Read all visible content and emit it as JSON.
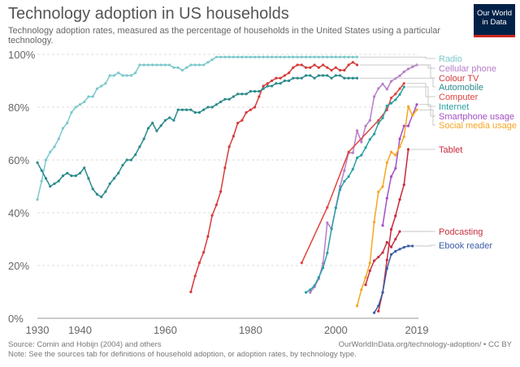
{
  "header": {
    "title": "Technology adoption in US households",
    "subtitle": "Technology adoption rates, measured as the percentage of households in the United States using a particular technology.",
    "logo_text": "Our World in Data"
  },
  "footer": {
    "source": "Source: Comin and Hobijn (2004) and others",
    "url": "OurWorldInData.org/technology-adoption/ • CC BY",
    "note": "Note: See the sources tab for definitions of household adoption, or adoption rates, by technology type."
  },
  "chart_data": {
    "type": "line",
    "title": "Technology adoption in US households",
    "xlabel": "",
    "ylabel": "",
    "xlim": [
      1930,
      2019
    ],
    "ylim": [
      0,
      100
    ],
    "grid": true,
    "legend": "right (labels at line ends)",
    "x_ticks": [
      "1930",
      "1940",
      "1960",
      "1980",
      "2000",
      "2019"
    ],
    "y_ticks": [
      "0%",
      "20%",
      "40%",
      "60%",
      "80%",
      "100%"
    ],
    "series": [
      {
        "name": "Radio",
        "color": "#7cc8cb",
        "start": 1930,
        "values": [
          45,
          52,
          60,
          63,
          65,
          68,
          72,
          74,
          78,
          80,
          81,
          82,
          84,
          84,
          87,
          88,
          89,
          92,
          92,
          93,
          92,
          92,
          92,
          93,
          96,
          96,
          96,
          96,
          96,
          96,
          96,
          96,
          95,
          95,
          94,
          95,
          96,
          96,
          96,
          96,
          97,
          98,
          99,
          99,
          99,
          99,
          99,
          99,
          99,
          99,
          99,
          99,
          99,
          99,
          99,
          99,
          99,
          99,
          99,
          99,
          99,
          99,
          99,
          99,
          99,
          99,
          99,
          99,
          99,
          99,
          99,
          99,
          99,
          99,
          99,
          99
        ]
      },
      {
        "name": "Cellular phone",
        "color": "#b67dc7",
        "start": 1994,
        "values": [
          9.8,
          11.9,
          15,
          20.8,
          36.2,
          33.9,
          42,
          50,
          56,
          62.7,
          62.7,
          71.1,
          66.8,
          72.9,
          75,
          84,
          87.1,
          88.8,
          86.8,
          89.8,
          90.9,
          91.9,
          93.4,
          94.5,
          95.3,
          96
        ]
      },
      {
        "name": "Colour TV",
        "color": "#d63a3a",
        "start": 1966,
        "values": [
          10,
          16,
          21,
          25,
          31,
          39,
          43,
          48,
          57,
          65,
          69,
          74,
          75,
          78,
          79,
          80,
          84,
          88,
          89,
          90,
          91,
          91,
          92,
          93,
          95,
          96,
          96,
          95,
          95,
          96,
          95,
          96,
          95,
          94,
          95,
          94,
          94,
          96,
          97,
          96
        ]
      },
      {
        "name": "Automobile",
        "color": "#2b8a8c",
        "start": 1930,
        "values": [
          59,
          56,
          53,
          50,
          51,
          52,
          54,
          55,
          54,
          54,
          55,
          57,
          53,
          49,
          47,
          46,
          48,
          51,
          53,
          55,
          58,
          60,
          60,
          62,
          65,
          68,
          72,
          74,
          71,
          73,
          75,
          76,
          75,
          79,
          79,
          79,
          79,
          78,
          78,
          79,
          80,
          80,
          81,
          82,
          83,
          83,
          84,
          85,
          85,
          85,
          86,
          86,
          86,
          87,
          88,
          88,
          89,
          89,
          90,
          90,
          91,
          91,
          91,
          92,
          92,
          91,
          92,
          92,
          92,
          91,
          92,
          92,
          91,
          91,
          91,
          91
        ]
      },
      {
        "name": "Computer",
        "color": "#e0443f",
        "points": [
          [
            1992,
            21
          ],
          [
            1998,
            42
          ],
          [
            2003,
            63
          ],
          [
            2010,
            75
          ],
          [
            2012,
            79
          ],
          [
            2013,
            83.5
          ],
          [
            2014,
            85
          ],
          [
            2015,
            87
          ],
          [
            2016,
            89
          ]
        ]
      },
      {
        "name": "Internet",
        "color": "#2a9fa1",
        "start": 1993,
        "values": [
          9.8,
          10.8,
          12.4,
          15.5,
          19.1,
          24.7,
          33.9,
          41.8,
          48.8,
          51.9,
          53.7,
          56.5,
          60.8,
          61.8,
          64.7,
          67.8,
          69.8,
          73.9,
          75.9,
          80.5,
          81.5,
          82.8,
          84.8,
          87.7
        ]
      },
      {
        "name": "Smartphone usage",
        "color": "#a44fc4",
        "start": 2011,
        "values": [
          35.2,
          45.5,
          53.7,
          56.8,
          68,
          72.9,
          72.9,
          77,
          81
        ]
      },
      {
        "name": "Social media usage",
        "color": "#f5a623",
        "start": 2005,
        "values": [
          4.7,
          10.8,
          15.5,
          20.9,
          36.5,
          47.9,
          49.9,
          59,
          63,
          61.8,
          65,
          68.8,
          80.2,
          76.9,
          79
        ]
      },
      {
        "name": "Tablet",
        "color": "#c8293b",
        "start": 2010,
        "values": [
          2.7,
          9.8,
          22.1,
          33.7,
          38.8,
          45,
          50.6,
          64
        ]
      },
      {
        "name": "Podcasting",
        "color": "#c6303e",
        "start": 2007,
        "values": [
          12.7,
          18,
          21.8,
          23.2,
          24.9,
          28.8,
          27,
          30,
          32.9
        ]
      },
      {
        "name": "Ebook reader",
        "color": "#3b5ca8",
        "start": 2009,
        "values": [
          2.1,
          4.7,
          9.8,
          18.9,
          24.2,
          25.4,
          26.2,
          26.9,
          27.4,
          27.4
        ]
      }
    ]
  }
}
